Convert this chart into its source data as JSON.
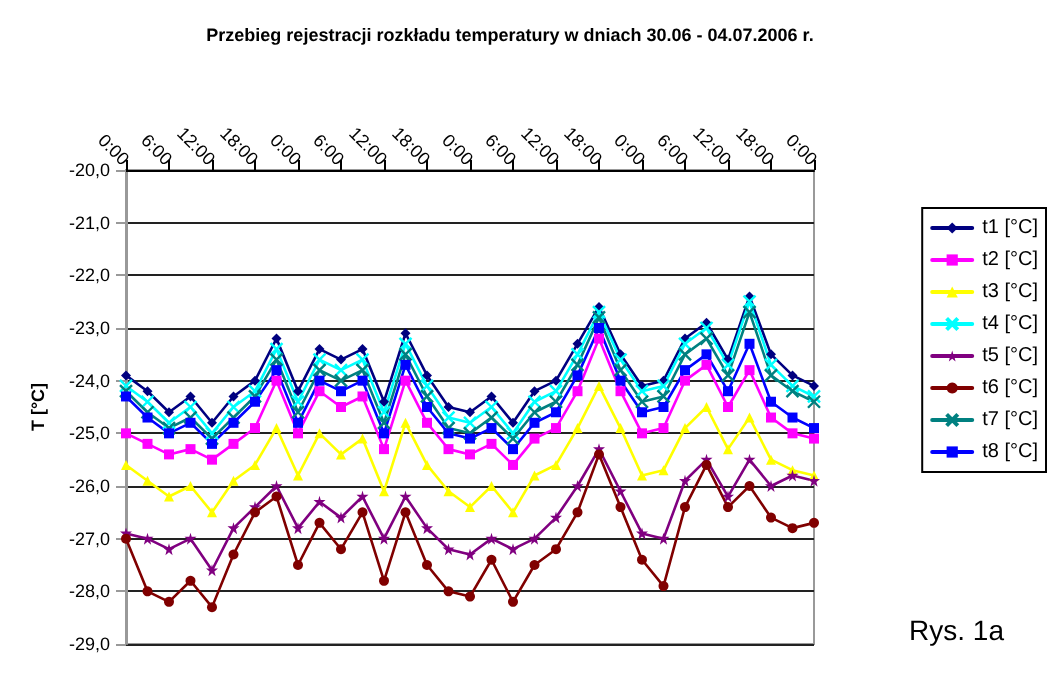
{
  "chart_data": {
    "type": "line",
    "title": "Przebieg rejestracji rozkładu temperatury w dniach 30.06 - 04.07.2006 r.",
    "ylabel": "T [°C]",
    "annotations": [
      "Rys. 1a"
    ],
    "x": [
      "2006-06-30T00:00",
      "2006-06-30T03:00",
      "2006-06-30T06:00",
      "2006-06-30T09:00",
      "2006-06-30T12:00",
      "2006-06-30T15:00",
      "2006-06-30T18:00",
      "2006-06-30T21:00",
      "2006-07-01T00:00",
      "2006-07-01T03:00",
      "2006-07-01T06:00",
      "2006-07-01T09:00",
      "2006-07-01T12:00",
      "2006-07-01T15:00",
      "2006-07-01T18:00",
      "2006-07-01T21:00",
      "2006-07-02T00:00",
      "2006-07-02T03:00",
      "2006-07-02T06:00",
      "2006-07-02T09:00",
      "2006-07-02T12:00",
      "2006-07-02T15:00",
      "2006-07-02T18:00",
      "2006-07-02T21:00",
      "2006-07-03T00:00",
      "2006-07-03T03:00",
      "2006-07-03T06:00",
      "2006-07-03T09:00",
      "2006-07-03T12:00",
      "2006-07-03T15:00",
      "2006-07-03T18:00",
      "2006-07-03T21:00",
      "2006-07-04T00:00"
    ],
    "xlim": [
      "2006-06-30T00:00",
      "2006-07-04T00:00"
    ],
    "xticks": [
      {
        "value": "2006-06-30T00:00",
        "label": "0:00"
      },
      {
        "value": "2006-06-30T06:00",
        "label": "6:00"
      },
      {
        "value": "2006-06-30T12:00",
        "label": "12:00"
      },
      {
        "value": "2006-06-30T18:00",
        "label": "18:00"
      },
      {
        "value": "2006-07-01T00:00",
        "label": "0:00"
      },
      {
        "value": "2006-07-01T06:00",
        "label": "6:00"
      },
      {
        "value": "2006-07-01T12:00",
        "label": "12:00"
      },
      {
        "value": "2006-07-01T18:00",
        "label": "18:00"
      },
      {
        "value": "2006-07-02T00:00",
        "label": "0:00"
      },
      {
        "value": "2006-07-02T06:00",
        "label": "6:00"
      },
      {
        "value": "2006-07-02T12:00",
        "label": "12:00"
      },
      {
        "value": "2006-07-02T18:00",
        "label": "18:00"
      },
      {
        "value": "2006-07-03T00:00",
        "label": "0:00"
      },
      {
        "value": "2006-07-03T06:00",
        "label": "6:00"
      },
      {
        "value": "2006-07-03T12:00",
        "label": "12:00"
      },
      {
        "value": "2006-07-03T18:00",
        "label": "18:00"
      },
      {
        "value": "2006-07-04T00:00",
        "label": "0:00"
      }
    ],
    "ylim": [
      -29,
      -20
    ],
    "yticks": [
      {
        "value": -29,
        "label": "-29,0"
      },
      {
        "value": -28,
        "label": "-28,0"
      },
      {
        "value": -27,
        "label": "-27,0"
      },
      {
        "value": -26,
        "label": "-26,0"
      },
      {
        "value": -25,
        "label": "-25,0"
      },
      {
        "value": -24,
        "label": "-24,0"
      },
      {
        "value": -23,
        "label": "-23,0"
      },
      {
        "value": -22,
        "label": "-22,0"
      },
      {
        "value": -21,
        "label": "-21,0"
      },
      {
        "value": -20,
        "label": "-20,0"
      }
    ],
    "grid": "y",
    "legend": "right",
    "line_style": "solid",
    "series": [
      {
        "name": "t1 [°C]",
        "color": "#000080",
        "marker": "diamond",
        "values": [
          -23.9,
          -24.2,
          -24.6,
          -24.3,
          -24.8,
          -24.3,
          -24.0,
          -23.2,
          -24.2,
          -23.4,
          -23.6,
          -23.4,
          -24.4,
          -23.1,
          -23.9,
          -24.5,
          -24.6,
          -24.3,
          -24.8,
          -24.2,
          -24.0,
          -23.3,
          -22.6,
          -23.5,
          -24.1,
          -24.0,
          -23.2,
          -22.9,
          -23.6,
          -22.4,
          -23.5,
          -23.9,
          -24.1
        ]
      },
      {
        "name": "t2 [°C]",
        "color": "#ff00ff",
        "marker": "square",
        "values": [
          -25.0,
          -25.2,
          -25.4,
          -25.3,
          -25.5,
          -25.2,
          -24.9,
          -24.0,
          -25.0,
          -24.2,
          -24.5,
          -24.3,
          -25.3,
          -24.0,
          -24.8,
          -25.3,
          -25.4,
          -25.2,
          -25.6,
          -25.1,
          -24.9,
          -24.2,
          -23.2,
          -24.2,
          -25.0,
          -24.9,
          -24.0,
          -23.7,
          -24.5,
          -23.8,
          -24.7,
          -25.0,
          -25.1
        ]
      },
      {
        "name": "t3 [°C]",
        "color": "#ffff00",
        "marker": "triangle",
        "values": [
          -25.6,
          -25.9,
          -26.2,
          -26.0,
          -26.5,
          -25.9,
          -25.6,
          -24.9,
          -25.8,
          -25.0,
          -25.4,
          -25.1,
          -26.1,
          -24.8,
          -25.6,
          -26.1,
          -26.4,
          -26.0,
          -26.5,
          -25.8,
          -25.6,
          -24.9,
          -24.1,
          -24.9,
          -25.8,
          -25.7,
          -24.9,
          -24.5,
          -25.3,
          -24.7,
          -25.5,
          -25.7,
          -25.8
        ]
      },
      {
        "name": "t4 [°C]",
        "color": "#00ffff",
        "marker": "cross",
        "values": [
          -24.1,
          -24.4,
          -24.8,
          -24.5,
          -25.0,
          -24.5,
          -24.2,
          -23.4,
          -24.4,
          -23.6,
          -23.8,
          -23.6,
          -24.6,
          -23.3,
          -24.1,
          -24.7,
          -24.8,
          -24.5,
          -25.0,
          -24.4,
          -24.2,
          -23.5,
          -22.7,
          -23.6,
          -24.2,
          -24.1,
          -23.3,
          -23.0,
          -23.7,
          -22.5,
          -23.7,
          -24.1,
          -24.3
        ]
      },
      {
        "name": "t5 [°C]",
        "color": "#800080",
        "marker": "star",
        "values": [
          -26.9,
          -27.0,
          -27.2,
          -27.0,
          -27.6,
          -26.8,
          -26.4,
          -26.0,
          -26.8,
          -26.3,
          -26.6,
          -26.2,
          -27.0,
          -26.2,
          -26.8,
          -27.2,
          -27.3,
          -27.0,
          -27.2,
          -27.0,
          -26.6,
          -26.0,
          -25.3,
          -26.1,
          -26.9,
          -27.0,
          -25.9,
          -25.5,
          -26.2,
          -25.5,
          -26.0,
          -25.8,
          -25.9
        ]
      },
      {
        "name": "t6 [°C]",
        "color": "#800000",
        "marker": "circle",
        "values": [
          -27.0,
          -28.0,
          -28.2,
          -27.8,
          -28.3,
          -27.3,
          -26.5,
          -26.2,
          -27.5,
          -26.7,
          -27.2,
          -26.5,
          -27.8,
          -26.5,
          -27.5,
          -28.0,
          -28.1,
          -27.4,
          -28.2,
          -27.5,
          -27.2,
          -26.5,
          -25.4,
          -26.4,
          -27.4,
          -27.9,
          -26.4,
          -25.6,
          -26.4,
          -26.0,
          -26.6,
          -26.8,
          -26.7
        ]
      },
      {
        "name": "t7 [°C]",
        "color": "#008080",
        "marker": "cross",
        "values": [
          -24.2,
          -24.6,
          -24.9,
          -24.7,
          -25.1,
          -24.7,
          -24.3,
          -23.6,
          -24.6,
          -23.8,
          -24.0,
          -23.8,
          -24.8,
          -23.5,
          -24.3,
          -24.9,
          -25.0,
          -24.7,
          -25.1,
          -24.6,
          -24.4,
          -23.7,
          -22.8,
          -23.8,
          -24.4,
          -24.3,
          -23.5,
          -23.2,
          -23.9,
          -22.7,
          -23.9,
          -24.2,
          -24.4
        ]
      },
      {
        "name": "t8 [°C]",
        "color": "#0000ff",
        "marker": "square",
        "values": [
          -24.3,
          -24.7,
          -25.0,
          -24.8,
          -25.2,
          -24.8,
          -24.4,
          -23.8,
          -24.8,
          -24.0,
          -24.2,
          -24.0,
          -25.0,
          -23.7,
          -24.5,
          -25.0,
          -25.1,
          -24.9,
          -25.3,
          -24.8,
          -24.6,
          -23.9,
          -23.0,
          -24.0,
          -24.6,
          -24.5,
          -23.8,
          -23.5,
          -24.2,
          -23.3,
          -24.4,
          -24.7,
          -24.9
        ]
      }
    ]
  }
}
